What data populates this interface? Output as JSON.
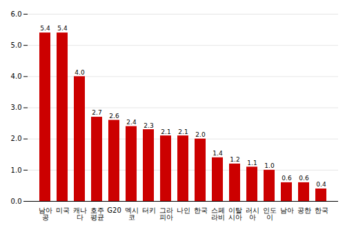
{
  "chart_data": {
    "type": "bar",
    "categories": [
      "남아\n공",
      "미국",
      "캐나\n다",
      "호주\n평균",
      "G20",
      "멕시\n코",
      "터키",
      "그라\n피아",
      "나인",
      "한국",
      "스페\n라비",
      "이탈\n시아",
      "러시\n아",
      "인도\n이",
      "남아",
      "공한",
      "한국"
    ],
    "values": [
      5.4,
      5.4,
      4.0,
      2.7,
      2.6,
      2.4,
      2.3,
      2.1,
      2.1,
      2.0,
      1.4,
      1.2,
      1.1,
      1.0,
      0.6,
      0.6,
      0.4
    ],
    "value_labels": [
      "5.4",
      "5.4",
      "4.0",
      "2.7",
      "2.6",
      "2.4",
      "2.3",
      "2.1",
      "2.1",
      "2.0",
      "1.4",
      "1.2",
      "1.1",
      "1.0",
      "0.6",
      "0.6",
      "0.4"
    ],
    "data_labels": true,
    "color": "#cc0000",
    "ylim": [
      0,
      6.0
    ],
    "yticks": [
      {
        "value": 0,
        "label": "0.0"
      },
      {
        "value": 1,
        "label": "1.0"
      },
      {
        "value": 2,
        "label": "2.0"
      },
      {
        "value": 3,
        "label": "3.0"
      },
      {
        "value": 4,
        "label": "4.0"
      },
      {
        "value": 5,
        "label": "5.0"
      },
      {
        "value": 6,
        "label": "6.0"
      }
    ],
    "grid": true
  }
}
